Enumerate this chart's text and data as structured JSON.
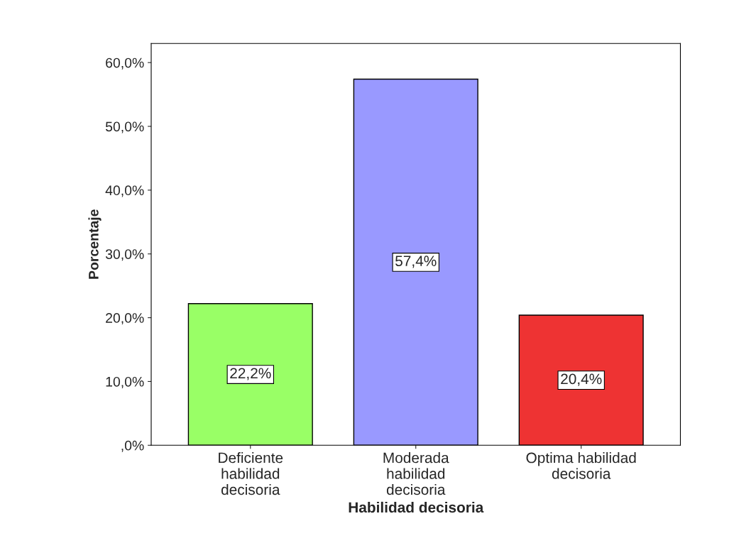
{
  "chart_data": {
    "type": "bar",
    "xlabel": "Habilidad decisoria",
    "ylabel": "Porcentaje",
    "categories": [
      "Deficiente\nhabilidad\ndecisoria",
      "Moderada\nhabilidad\ndecisoria",
      "Optima habilidad\ndecisoria"
    ],
    "values": [
      22.2,
      57.4,
      20.4
    ],
    "colors": [
      "#99ff66",
      "#9999ff",
      "#ee3333"
    ],
    "value_labels": [
      "22,2%",
      "57,4%",
      "20,4%"
    ],
    "ylim": [
      0,
      63
    ],
    "yticks": [
      {
        "value": 0,
        "label": ",0%"
      },
      {
        "value": 10,
        "label": "10,0%"
      },
      {
        "value": 20,
        "label": "20,0%"
      },
      {
        "value": 30,
        "label": "30,0%"
      },
      {
        "value": 40,
        "label": "40,0%"
      },
      {
        "value": 50,
        "label": "50,0%"
      },
      {
        "value": 60,
        "label": "60,0%"
      }
    ],
    "grid": false
  }
}
